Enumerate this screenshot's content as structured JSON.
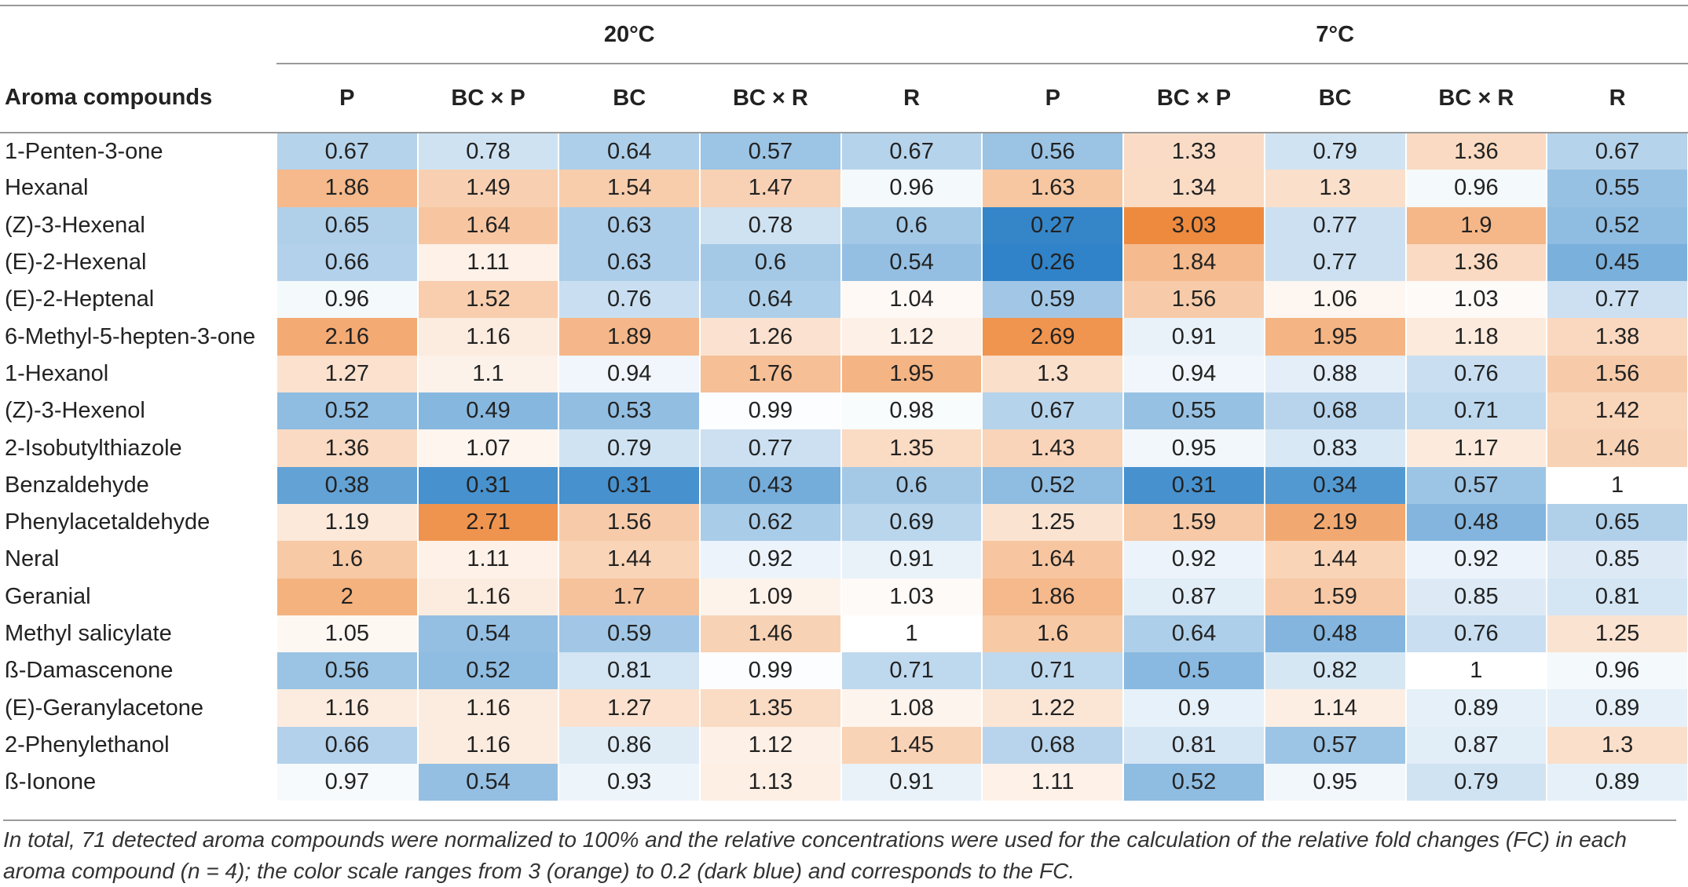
{
  "table": {
    "group_headers": [
      "20°C",
      "7°C"
    ],
    "name_header": "Aroma compounds",
    "columns": [
      "P",
      "BC × P",
      "BC",
      "BC × R",
      "R",
      "P",
      "BC × P",
      "BC",
      "BC × R",
      "R"
    ],
    "rows": [
      {
        "name": "1-Penten-3-one",
        "values": [
          "0.67",
          "0.78",
          "0.64",
          "0.57",
          "0.67",
          "0.56",
          "1.33",
          "0.79",
          "1.36",
          "0.67"
        ]
      },
      {
        "name": "Hexanal",
        "values": [
          "1.86",
          "1.49",
          "1.54",
          "1.47",
          "0.96",
          "1.63",
          "1.34",
          "1.3",
          "0.96",
          "0.55"
        ]
      },
      {
        "name": "(Z)-3-Hexenal",
        "values": [
          "0.65",
          "1.64",
          "0.63",
          "0.78",
          "0.6",
          "0.27",
          "3.03",
          "0.77",
          "1.9",
          "0.52"
        ]
      },
      {
        "name": "(E)-2-Hexenal",
        "values": [
          "0.66",
          "1.11",
          "0.63",
          "0.6",
          "0.54",
          "0.26",
          "1.84",
          "0.77",
          "1.36",
          "0.45"
        ]
      },
      {
        "name": "(E)-2-Heptenal",
        "values": [
          "0.96",
          "1.52",
          "0.76",
          "0.64",
          "1.04",
          "0.59",
          "1.56",
          "1.06",
          "1.03",
          "0.77"
        ]
      },
      {
        "name": "6-Methyl-5-hepten-3-one",
        "values": [
          "2.16",
          "1.16",
          "1.89",
          "1.26",
          "1.12",
          "2.69",
          "0.91",
          "1.95",
          "1.18",
          "1.38"
        ]
      },
      {
        "name": "1-Hexanol",
        "values": [
          "1.27",
          "1.1",
          "0.94",
          "1.76",
          "1.95",
          "1.3",
          "0.94",
          "0.88",
          "0.76",
          "1.56"
        ]
      },
      {
        "name": "(Z)-3-Hexenol",
        "values": [
          "0.52",
          "0.49",
          "0.53",
          "0.99",
          "0.98",
          "0.67",
          "0.55",
          "0.68",
          "0.71",
          "1.42"
        ]
      },
      {
        "name": "2-Isobutylthiazole",
        "values": [
          "1.36",
          "1.07",
          "0.79",
          "0.77",
          "1.35",
          "1.43",
          "0.95",
          "0.83",
          "1.17",
          "1.46"
        ]
      },
      {
        "name": "Benzaldehyde",
        "values": [
          "0.38",
          "0.31",
          "0.31",
          "0.43",
          "0.6",
          "0.52",
          "0.31",
          "0.34",
          "0.57",
          "1"
        ]
      },
      {
        "name": "Phenylacetaldehyde",
        "values": [
          "1.19",
          "2.71",
          "1.56",
          "0.62",
          "0.69",
          "1.25",
          "1.59",
          "2.19",
          "0.48",
          "0.65"
        ]
      },
      {
        "name": "Neral",
        "values": [
          "1.6",
          "1.11",
          "1.44",
          "0.92",
          "0.91",
          "1.64",
          "0.92",
          "1.44",
          "0.92",
          "0.85"
        ]
      },
      {
        "name": "Geranial",
        "values": [
          "2",
          "1.16",
          "1.7",
          "1.09",
          "1.03",
          "1.86",
          "0.87",
          "1.59",
          "0.85",
          "0.81"
        ]
      },
      {
        "name": "Methyl salicylate",
        "values": [
          "1.05",
          "0.54",
          "0.59",
          "1.46",
          "1",
          "1.6",
          "0.64",
          "0.48",
          "0.76",
          "1.25"
        ]
      },
      {
        "name": "ß-Damascenone",
        "values": [
          "0.56",
          "0.52",
          "0.81",
          "0.99",
          "0.71",
          "0.71",
          "0.5",
          "0.82",
          "1",
          "0.96"
        ]
      },
      {
        "name": "(E)-Geranylacetone",
        "values": [
          "1.16",
          "1.16",
          "1.27",
          "1.35",
          "1.08",
          "1.22",
          "0.9",
          "1.14",
          "0.89",
          "0.89"
        ]
      },
      {
        "name": "2-Phenylethanol",
        "values": [
          "0.66",
          "1.16",
          "0.86",
          "1.12",
          "1.45",
          "0.68",
          "0.81",
          "0.57",
          "0.87",
          "1.3"
        ]
      },
      {
        "name": "ß-Ionone",
        "values": [
          "0.97",
          "0.54",
          "0.93",
          "1.13",
          "0.91",
          "1.11",
          "0.52",
          "0.95",
          "0.79",
          "0.89"
        ]
      }
    ]
  },
  "colors": {
    "orange": "#ee8a3e",
    "neutral": "#ffffff",
    "dark_blue": "#0e6fbf"
  },
  "footnote": "In total, 71 detected aroma compounds were normalized to 100% and the relative concentrations were used for the calculation of the relative fold changes (FC) in each aroma compound (n = 4); the color scale ranges from 3 (orange) to 0.2 (dark blue) and corresponds to the FC."
}
